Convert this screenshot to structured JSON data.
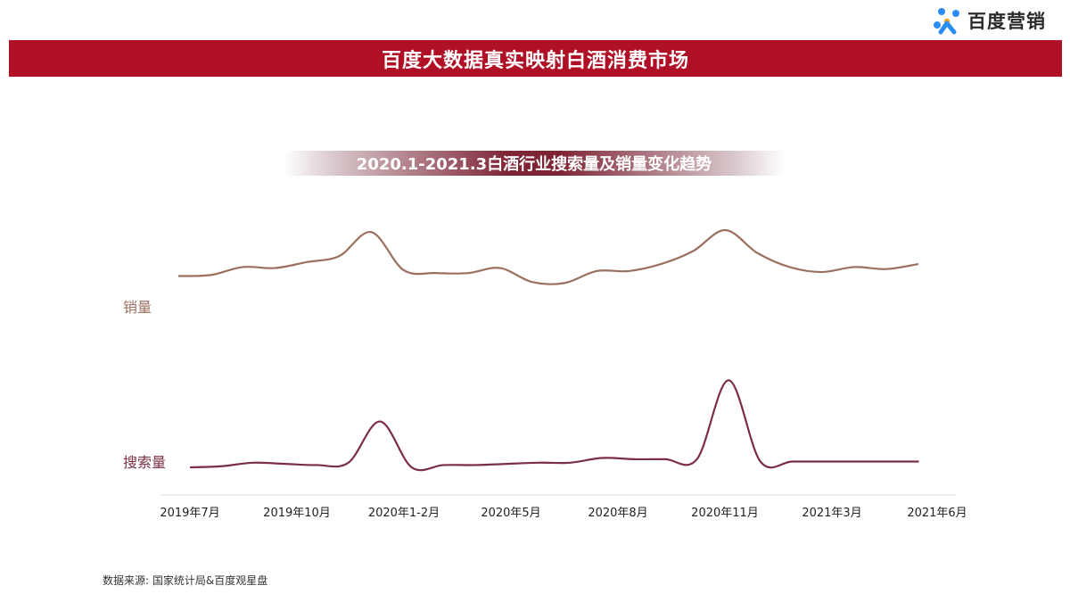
{
  "brand": {
    "logo_text": "百度营销",
    "logo_icon": "baidu-marketing-logo-icon"
  },
  "banner": {
    "title": "百度大数据真实映射白酒消费市场"
  },
  "chart_data": {
    "type": "line",
    "title": "2020.1-2021.3白酒行业搜索量及销量变化趋势",
    "categories": [
      "2019年7月",
      "2019年10月",
      "2020年1-2月",
      "2020年5月",
      "2020年8月",
      "2020年11月",
      "2021年3月",
      "2021年6月"
    ],
    "x_extent": [
      0,
      24
    ],
    "y_extent": [
      0,
      100
    ],
    "grid": false,
    "legend": "inline-left",
    "series": [
      {
        "name": "销量",
        "color": "#9c7060",
        "points": [
          [
            0,
            54
          ],
          [
            1,
            55
          ],
          [
            2,
            63
          ],
          [
            3,
            62
          ],
          [
            4,
            68
          ],
          [
            5,
            74
          ],
          [
            6,
            98
          ],
          [
            7,
            60
          ],
          [
            8,
            57
          ],
          [
            9,
            57
          ],
          [
            10,
            62
          ],
          [
            11,
            48
          ],
          [
            12,
            47
          ],
          [
            13,
            59
          ],
          [
            14,
            59
          ],
          [
            15,
            66
          ],
          [
            16,
            79
          ],
          [
            17,
            100
          ],
          [
            18,
            77
          ],
          [
            19,
            63
          ],
          [
            20,
            58
          ],
          [
            21,
            63
          ],
          [
            22,
            61
          ],
          [
            23,
            66
          ]
        ]
      },
      {
        "name": "搜索量",
        "color": "#7b2f43",
        "points": [
          [
            0,
            6
          ],
          [
            1,
            7
          ],
          [
            2,
            10
          ],
          [
            3,
            9
          ],
          [
            4,
            8
          ],
          [
            5,
            10
          ],
          [
            6,
            45
          ],
          [
            7,
            6
          ],
          [
            8,
            8
          ],
          [
            9,
            8
          ],
          [
            10,
            9
          ],
          [
            11,
            10
          ],
          [
            12,
            10
          ],
          [
            13,
            14
          ],
          [
            14,
            13
          ],
          [
            15,
            13
          ],
          [
            16,
            13
          ],
          [
            17,
            80
          ],
          [
            18,
            11
          ],
          [
            19,
            11
          ],
          [
            20,
            11
          ],
          [
            21,
            11
          ],
          [
            22,
            11
          ],
          [
            23,
            11
          ]
        ]
      }
    ]
  },
  "footer": {
    "source": "数据来源: 国家统计局&百度观星盘"
  }
}
